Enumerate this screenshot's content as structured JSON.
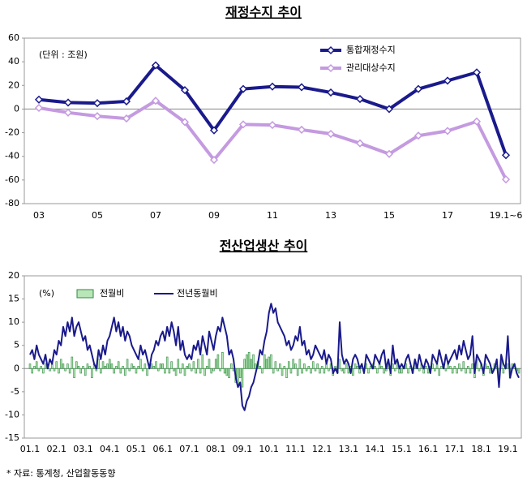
{
  "chart_data": [
    {
      "type": "line",
      "title": "재정수지 추이",
      "annotation": "(단위 : 조원)",
      "categories": [
        "03",
        null,
        "05",
        null,
        "07",
        null,
        "09",
        null,
        "11",
        null,
        "13",
        null,
        "15",
        null,
        "17",
        null,
        "19.1~6"
      ],
      "series": [
        {
          "name": "통합재정수지",
          "color": "#1a1a8c",
          "values": [
            8,
            5.5,
            5,
            6.5,
            37,
            16,
            -18,
            17,
            19,
            18.5,
            14,
            8.5,
            0,
            17,
            24,
            31,
            -39
          ]
        },
        {
          "name": "관리대상수지",
          "color": "#c49ae0",
          "values": [
            1,
            -3,
            -6,
            -8,
            7,
            -11,
            -43,
            -13,
            -13.5,
            -17.5,
            -21,
            -29,
            -38,
            -22.5,
            -18.5,
            -10.5,
            -59.5
          ]
        }
      ],
      "ylim": [
        -80,
        60
      ],
      "yticks": [
        -80,
        -60,
        -40,
        -20,
        0,
        20,
        40,
        60
      ]
    },
    {
      "type": "combo",
      "title": "전산업생산 추이",
      "annotation": "(%)",
      "categories": [
        "01.1",
        null,
        null,
        null,
        null,
        null,
        null,
        null,
        null,
        null,
        null,
        null,
        "02.1",
        null,
        null,
        null,
        null,
        null,
        null,
        null,
        null,
        null,
        null,
        null,
        "03.1",
        null,
        null,
        null,
        null,
        null,
        null,
        null,
        null,
        null,
        null,
        null,
        "04.1",
        null,
        null,
        null,
        null,
        null,
        null,
        null,
        null,
        null,
        null,
        null,
        "05.1",
        null,
        null,
        null,
        null,
        null,
        null,
        null,
        null,
        null,
        null,
        null,
        "06.1",
        null,
        null,
        null,
        null,
        null,
        null,
        null,
        null,
        null,
        null,
        null,
        "07.1",
        null,
        null,
        null,
        null,
        null,
        null,
        null,
        null,
        null,
        null,
        null,
        "08.1",
        null,
        null,
        null,
        null,
        null,
        null,
        null,
        null,
        null,
        null,
        null,
        "09.1",
        null,
        null,
        null,
        null,
        null,
        null,
        null,
        null,
        null,
        null,
        null,
        "10.1",
        null,
        null,
        null,
        null,
        null,
        null,
        null,
        null,
        null,
        null,
        null,
        "11.1",
        null,
        null,
        null,
        null,
        null,
        null,
        null,
        null,
        null,
        null,
        null,
        "12.1",
        null,
        null,
        null,
        null,
        null,
        null,
        null,
        null,
        null,
        null,
        null,
        "13.1",
        null,
        null,
        null,
        null,
        null,
        null,
        null,
        null,
        null,
        null,
        null,
        "14.1",
        null,
        null,
        null,
        null,
        null,
        null,
        null,
        null,
        null,
        null,
        null,
        "15.1",
        null,
        null,
        null,
        null,
        null,
        null,
        null,
        null,
        null,
        null,
        null,
        "16.1",
        null,
        null,
        null,
        null,
        null,
        null,
        null,
        null,
        null,
        null,
        null,
        "17.1",
        null,
        null,
        null,
        null,
        null,
        null,
        null,
        null,
        null,
        null,
        null,
        "18.1",
        null,
        null,
        null,
        null,
        null,
        null,
        null,
        null,
        null,
        null,
        null,
        "19.1",
        null,
        null,
        null,
        null,
        null
      ],
      "series": [
        {
          "name": "전월비",
          "type": "bar",
          "color": "#2e8b3e",
          "values": [
            1,
            -1,
            0.5,
            1.5,
            -0.5,
            0.5,
            -1,
            1,
            0.5,
            -0.5,
            1,
            -0.5,
            1.5,
            -1,
            2,
            1,
            -0.5,
            1,
            -1,
            2.5,
            -2,
            1.5,
            0.5,
            -1,
            0.5,
            -1.5,
            1,
            0.5,
            -2,
            1,
            -0.5,
            2,
            -1,
            1.5,
            0.5,
            1,
            2,
            1,
            -1,
            0.5,
            1.5,
            -1,
            0.5,
            -1.5,
            2,
            -0.5,
            1,
            0.5,
            -1,
            0.5,
            2,
            -0.5,
            1,
            -1.5,
            0.5,
            1,
            0.5,
            1.5,
            -0.5,
            1,
            1,
            -1,
            2.5,
            -1,
            1.5,
            -0.5,
            -1.5,
            2,
            -1,
            1,
            -1.5,
            0.5,
            1,
            -0.5,
            1.5,
            -1,
            2,
            -1,
            3,
            -1.5,
            0.5,
            2,
            -1,
            -0.5,
            2,
            3,
            -0.5,
            3.5,
            -1,
            -1.5,
            -2,
            1,
            -0.5,
            -3,
            -3.5,
            -2,
            -4,
            2,
            3,
            3.5,
            2,
            3,
            1,
            1.5,
            0.5,
            -1,
            3,
            2,
            2.5,
            3,
            -1,
            1.5,
            -0.5,
            1,
            -1.5,
            0.5,
            -2,
            1.5,
            -1,
            2,
            1,
            -1.5,
            2,
            -1,
            1,
            -0.5,
            0.5,
            -1,
            1.5,
            -0.5,
            1,
            -1,
            0.5,
            -1,
            1,
            -0.5,
            1,
            -1.5,
            0.5,
            -1,
            2,
            -0.5,
            -1,
            1,
            -1,
            0.5,
            -1.5,
            1,
            0.5,
            -1,
            1,
            -0.5,
            1,
            -1,
            0.5,
            1,
            0.5,
            -1,
            1,
            0.5,
            -1,
            -0.5,
            1,
            -1.5,
            1,
            -0.5,
            1.5,
            -1,
            -1,
            0.5,
            1,
            -1,
            0.5,
            -1,
            1,
            0.5,
            -0.5,
            1,
            -1,
            0.5,
            -1,
            0.5,
            1,
            -0.5,
            1,
            -1.5,
            0.5,
            1,
            -0.5,
            1,
            0.5,
            -1,
            0.5,
            -1,
            1,
            -0.5,
            1.5,
            -1,
            0.5,
            -1,
            1,
            -2,
            2,
            -0.5,
            1,
            -1.5,
            1,
            0.5,
            -1,
            -0.5,
            1,
            0.5,
            -2,
            2,
            -1,
            0.5,
            1,
            -2,
            1,
            1,
            -0.5,
            -1
          ]
        },
        {
          "name": "전년동월비",
          "type": "line",
          "color": "#1a1a8c",
          "values": [
            3,
            4,
            2,
            5,
            3,
            2,
            1,
            3,
            0,
            2,
            1,
            4,
            3,
            6,
            5,
            9,
            7,
            10,
            8,
            11,
            7,
            9,
            10,
            8,
            6,
            7,
            4,
            5,
            3,
            1,
            0,
            4,
            2,
            5,
            3,
            6,
            7,
            9,
            11,
            8,
            10,
            7,
            9,
            6,
            8,
            7,
            5,
            4,
            3,
            2,
            5,
            3,
            4,
            2,
            0,
            3,
            4,
            6,
            5,
            7,
            8,
            6,
            9,
            7,
            10,
            8,
            5,
            9,
            4,
            6,
            3,
            2,
            3,
            2,
            5,
            4,
            6,
            3,
            7,
            5,
            3,
            8,
            6,
            4,
            7,
            9,
            8,
            11,
            9,
            7,
            3,
            4,
            2,
            -2,
            -4,
            -3,
            -8,
            -9,
            -7,
            -6,
            -4,
            -3,
            -1,
            1,
            4,
            3,
            6,
            8,
            12,
            14,
            12,
            13,
            10,
            9,
            8,
            7,
            5,
            6,
            4,
            5,
            7,
            6,
            9,
            5,
            6,
            3,
            4,
            2,
            3,
            5,
            4,
            3,
            2,
            4,
            1,
            3,
            2,
            -1,
            0,
            -1,
            10,
            3,
            1,
            2,
            1,
            -1,
            2,
            3,
            2,
            0,
            1,
            -1,
            3,
            2,
            1,
            0,
            3,
            2,
            1,
            3,
            4,
            0,
            2,
            -1,
            5,
            1,
            2,
            0,
            1,
            0,
            2,
            3,
            1,
            -1,
            2,
            0,
            3,
            1,
            0,
            2,
            1,
            -1,
            3,
            2,
            1,
            4,
            2,
            0,
            3,
            1,
            2,
            3,
            4,
            2,
            5,
            3,
            6,
            4,
            2,
            3,
            7,
            -1,
            3,
            2,
            1,
            -1,
            3,
            2,
            1,
            -1,
            0,
            2,
            -4,
            3,
            1,
            0,
            7,
            -2,
            0,
            1,
            -1,
            -2
          ]
        }
      ],
      "ylim": [
        -15,
        20
      ],
      "yticks": [
        -15,
        -10,
        -5,
        0,
        5,
        10,
        15,
        20
      ]
    }
  ],
  "source": "* 자료: 통계청, 산업활동동향"
}
